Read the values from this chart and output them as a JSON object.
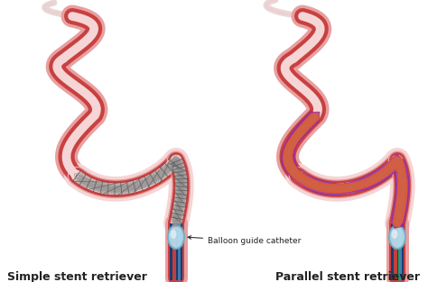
{
  "title_left": "Simple stent retriever",
  "title_right": "Parallel stent retriever",
  "annotation_text": "Balloon guide catheter",
  "bg_color": "#ffffff",
  "title_fontsize": 9,
  "title_fontweight": "bold",
  "fig_width": 4.74,
  "fig_height": 3.13,
  "dpi": 100,
  "artery_red": "#c94040",
  "artery_dark_red": "#b03030",
  "artery_pink": "#e8a0a0",
  "artery_light_pink": "#f5d5d5",
  "artery_inner": "#f0e0e0",
  "catheter_dark": "#1a3a70",
  "catheter_blue": "#3060a0",
  "catheter_red_stripe": "#c04040",
  "balloon_fill": "#b8e0f0",
  "balloon_edge": "#70b0c8",
  "stent_gray": "#909090",
  "parallel_colors": [
    "#9030a0",
    "#c03080",
    "#3080c0",
    "#50b050",
    "#30a090",
    "#8060c0",
    "#e06030"
  ],
  "annotation_text_color": "#222222",
  "gray_wire_color": "#555555"
}
